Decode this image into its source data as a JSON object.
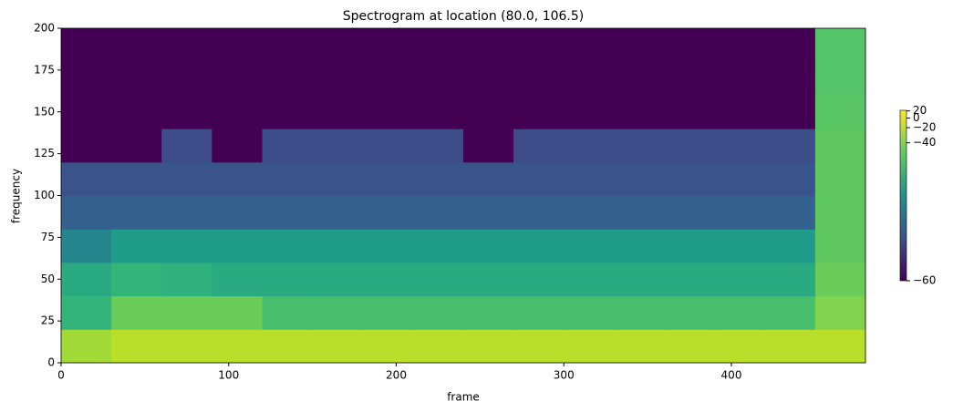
{
  "chart_data": {
    "type": "heatmap",
    "title": "Spectrogram at location (80.0, 106.5)",
    "x_label": "frame",
    "y_label": "frequency",
    "xlim": [
      0,
      480
    ],
    "ylim": [
      0,
      200
    ],
    "xticks": [
      0,
      100,
      200,
      300,
      400
    ],
    "yticks": [
      0,
      25,
      50,
      75,
      100,
      125,
      150,
      175,
      200
    ],
    "x_edges": [
      0,
      30,
      60,
      90,
      120,
      150,
      180,
      210,
      240,
      270,
      300,
      330,
      360,
      390,
      420,
      450,
      480
    ],
    "y_edges": [
      0,
      20,
      40,
      60,
      80,
      100,
      120,
      140,
      160,
      180,
      200
    ],
    "colormap": "viridis",
    "color_norm": {
      "type": "power",
      "gamma": 0.15
    },
    "clim": [
      -60,
      22
    ],
    "colorbar_ticks": [
      20,
      0,
      {
        "value": -20,
        "label": "−20"
      },
      {
        "value": -40,
        "label": "−40"
      },
      {
        "value": -60,
        "label": "−60"
      }
    ],
    "z": [
      [
        -30,
        -20,
        -20,
        -20,
        -20,
        -20,
        -20,
        -20,
        -20,
        -20,
        -20,
        -20,
        -20,
        -20,
        -20,
        -20
      ],
      [
        -55,
        -45,
        -45,
        -45,
        -52,
        -52,
        -52,
        -52,
        -52,
        -52,
        -52,
        -52,
        -52,
        -52,
        -52,
        -40
      ],
      [
        -57,
        -55,
        -56,
        -57,
        -57,
        -57,
        -57,
        -57,
        -57,
        -57,
        -57,
        -57,
        -57,
        -57,
        -57,
        -45
      ],
      [
        -59.5,
        -58.5,
        -58.5,
        -58.5,
        -58.5,
        -58.5,
        -58.5,
        -58.5,
        -58.5,
        -58.5,
        -58.5,
        -58.5,
        -58.5,
        -58.5,
        -58.5,
        -48
      ],
      [
        -59.97,
        -59.97,
        -59.97,
        -59.97,
        -59.97,
        -59.97,
        -59.97,
        -59.97,
        -59.97,
        -59.97,
        -59.97,
        -59.97,
        -59.97,
        -59.97,
        -59.97,
        -48
      ],
      [
        -59.99,
        -59.99,
        -59.99,
        -59.99,
        -59.99,
        -59.99,
        -59.99,
        -59.99,
        -59.99,
        -59.99,
        -59.99,
        -59.99,
        -59.99,
        -59.99,
        -59.99,
        -48
      ],
      [
        -60,
        -60,
        -59.995,
        -60,
        -59.995,
        -59.995,
        -59.995,
        -59.995,
        -60,
        -59.995,
        -59.995,
        -59.995,
        -59.995,
        -59.995,
        -59.995,
        -48
      ],
      [
        -60,
        -60,
        -60,
        -60,
        -60,
        -60,
        -60,
        -60,
        -60,
        -60,
        -60,
        -60,
        -60,
        -60,
        -60,
        -49
      ],
      [
        -60,
        -60,
        -60,
        -60,
        -60,
        -60,
        -60,
        -60,
        -60,
        -60,
        -60,
        -60,
        -60,
        -60,
        -60,
        -50
      ],
      [
        -60,
        -60,
        -60,
        -60,
        -60,
        -60,
        -60,
        -60,
        -60,
        -60,
        -60,
        -60,
        -60,
        -60,
        -60,
        -50
      ]
    ]
  }
}
